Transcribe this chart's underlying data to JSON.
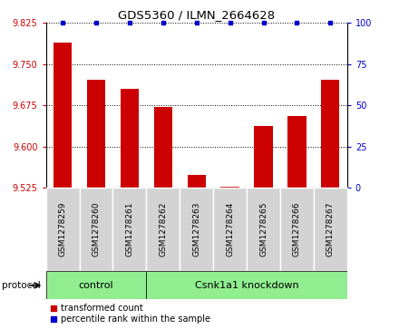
{
  "title": "GDS5360 / ILMN_2664628",
  "samples": [
    "GSM1278259",
    "GSM1278260",
    "GSM1278261",
    "GSM1278262",
    "GSM1278263",
    "GSM1278264",
    "GSM1278265",
    "GSM1278266",
    "GSM1278267"
  ],
  "transformed_count": [
    9.79,
    9.722,
    9.705,
    9.672,
    9.548,
    9.527,
    9.638,
    9.655,
    9.722
  ],
  "ylim": [
    9.525,
    9.825
  ],
  "yticks_left": [
    9.525,
    9.6,
    9.675,
    9.75,
    9.825
  ],
  "yticks_right": [
    0,
    25,
    50,
    75,
    100
  ],
  "bar_color": "#cc0000",
  "dot_color": "#0000cc",
  "control_label": "control",
  "knockdown_label": "Csnk1a1 knockdown",
  "protocol_label": "protocol",
  "legend_bar": "transformed count",
  "legend_dot": "percentile rank within the sample",
  "bar_width": 0.55,
  "left_tick_color": "#cc0000",
  "right_tick_color": "#0000cc",
  "n_control": 3,
  "n_knockdown": 6
}
